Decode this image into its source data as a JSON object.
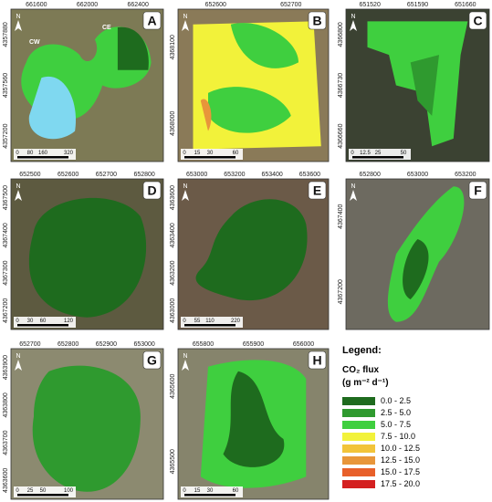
{
  "panels": [
    {
      "letter": "A",
      "xticks": [
        "661600",
        "662000",
        "662400"
      ],
      "yticks": [
        "4357880",
        "4357560",
        "4357200"
      ],
      "scale": [
        "0",
        "80",
        "160",
        "320"
      ],
      "labels": [
        "CW",
        "CE"
      ]
    },
    {
      "letter": "B",
      "xticks": [
        "652600",
        "652700"
      ],
      "yticks": [
        "4368100",
        "4368000"
      ],
      "scale": [
        "0",
        "15",
        "30",
        "60"
      ]
    },
    {
      "letter": "C",
      "xticks": [
        "651520",
        "651590",
        "651660"
      ],
      "yticks": [
        "4366800",
        "4366730",
        "4366660"
      ],
      "scale": [
        "0",
        "12.5",
        "25",
        "50"
      ]
    },
    {
      "letter": "D",
      "xticks": [
        "652500",
        "652600",
        "652700",
        "652800"
      ],
      "yticks": [
        "4367500",
        "4367400",
        "4367300",
        "4367200"
      ],
      "scale": [
        "0",
        "30",
        "60",
        "120"
      ]
    },
    {
      "letter": "E",
      "xticks": [
        "653000",
        "653200",
        "653400",
        "653600"
      ],
      "yticks": [
        "4363600",
        "4363400",
        "4363200",
        "4363000"
      ],
      "scale": [
        "0",
        "55",
        "110",
        "220"
      ]
    },
    {
      "letter": "F",
      "xticks": [
        "652800",
        "653000",
        "653200"
      ],
      "yticks": [
        "4367400",
        "4367200"
      ]
    },
    {
      "letter": "G",
      "xticks": [
        "652700",
        "652800",
        "652900",
        "653000"
      ],
      "yticks": [
        "4363900",
        "4363800",
        "4363700",
        "4363600"
      ],
      "scale": [
        "0",
        "25",
        "50",
        "100"
      ]
    },
    {
      "letter": "H",
      "xticks": [
        "655800",
        "655900",
        "656000"
      ],
      "yticks": [
        "4365600",
        "4365500"
      ],
      "scale": [
        "0",
        "15",
        "30",
        "60"
      ]
    }
  ],
  "north": "N",
  "legend": {
    "title": "Legend:",
    "heading": "CO₂ flux",
    "units": "(g m⁻² d⁻¹)",
    "classes": [
      {
        "label": "0.0 - 2.5",
        "color": "#1e6b1e"
      },
      {
        "label": "2.5 - 5.0",
        "color": "#2f9a2f"
      },
      {
        "label": "5.0 - 7.5",
        "color": "#3fcf3f"
      },
      {
        "label": "7.5 - 10.0",
        "color": "#f2f23a"
      },
      {
        "label": "10.0 - 12.5",
        "color": "#f2c43a"
      },
      {
        "label": "12.5 - 15.0",
        "color": "#e8963a"
      },
      {
        "label": "15.0 - 17.5",
        "color": "#e8602a"
      },
      {
        "label": "17.5 - 20.0",
        "color": "#d42020"
      }
    ]
  }
}
